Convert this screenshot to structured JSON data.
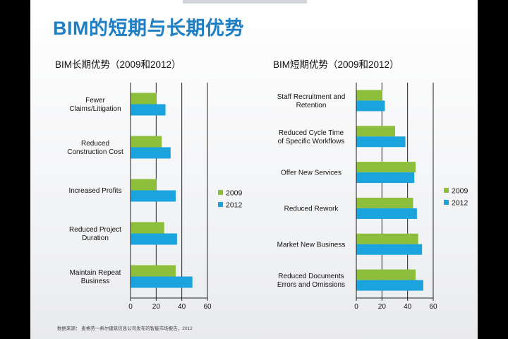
{
  "slide": {
    "title": "BIM的短期与长期优势",
    "footer": "数据来源：  麦格劳一希尔建筑信息公司发布的智能市场报告，2012"
  },
  "colors": {
    "2009": "#8dbf3c",
    "2012": "#1aa3dc",
    "title": "#1f7fc4"
  },
  "chart_data": [
    {
      "type": "bar",
      "orientation": "horizontal",
      "title": "BIM长期优势（2009和2012）",
      "categories": [
        [
          "Fewer",
          "Claims/Litigation"
        ],
        [
          "Reduced",
          "Construction Cost"
        ],
        [
          "Increased Profits"
        ],
        [
          "Reduced Project",
          "Duration"
        ],
        [
          "Maintain Repeat",
          "Business"
        ]
      ],
      "series": [
        {
          "name": "2009",
          "values": [
            20,
            24,
            20,
            26,
            35
          ]
        },
        {
          "name": "2012",
          "values": [
            27,
            31,
            35,
            36,
            48
          ]
        }
      ],
      "xlim": [
        0,
        60
      ],
      "xticks": [
        "0",
        "20",
        "40",
        "60"
      ],
      "gridlines_at": [
        20,
        40,
        60
      ],
      "legend": "right"
    },
    {
      "type": "bar",
      "orientation": "horizontal",
      "title": "BIM短期优势（2009和2012）",
      "categories": [
        [
          "Staff Recruitment and",
          "Retention"
        ],
        [
          "Reduced Cycle Time",
          "of Specific Workflows"
        ],
        [
          "Offer New Services"
        ],
        [
          "Reduced Rework"
        ],
        [
          "Market New Business"
        ],
        [
          "Reduced Documents",
          "Errors and Omissions"
        ]
      ],
      "series": [
        {
          "name": "2009",
          "values": [
            20,
            30,
            46,
            44,
            48,
            46
          ]
        },
        {
          "name": "2012",
          "values": [
            22,
            38,
            45,
            47,
            51,
            52
          ]
        }
      ],
      "xlim": [
        0,
        60
      ],
      "xticks": [
        "0",
        "20",
        "40",
        "60"
      ],
      "gridlines_at": [
        20,
        40,
        60
      ],
      "legend": "right"
    }
  ]
}
